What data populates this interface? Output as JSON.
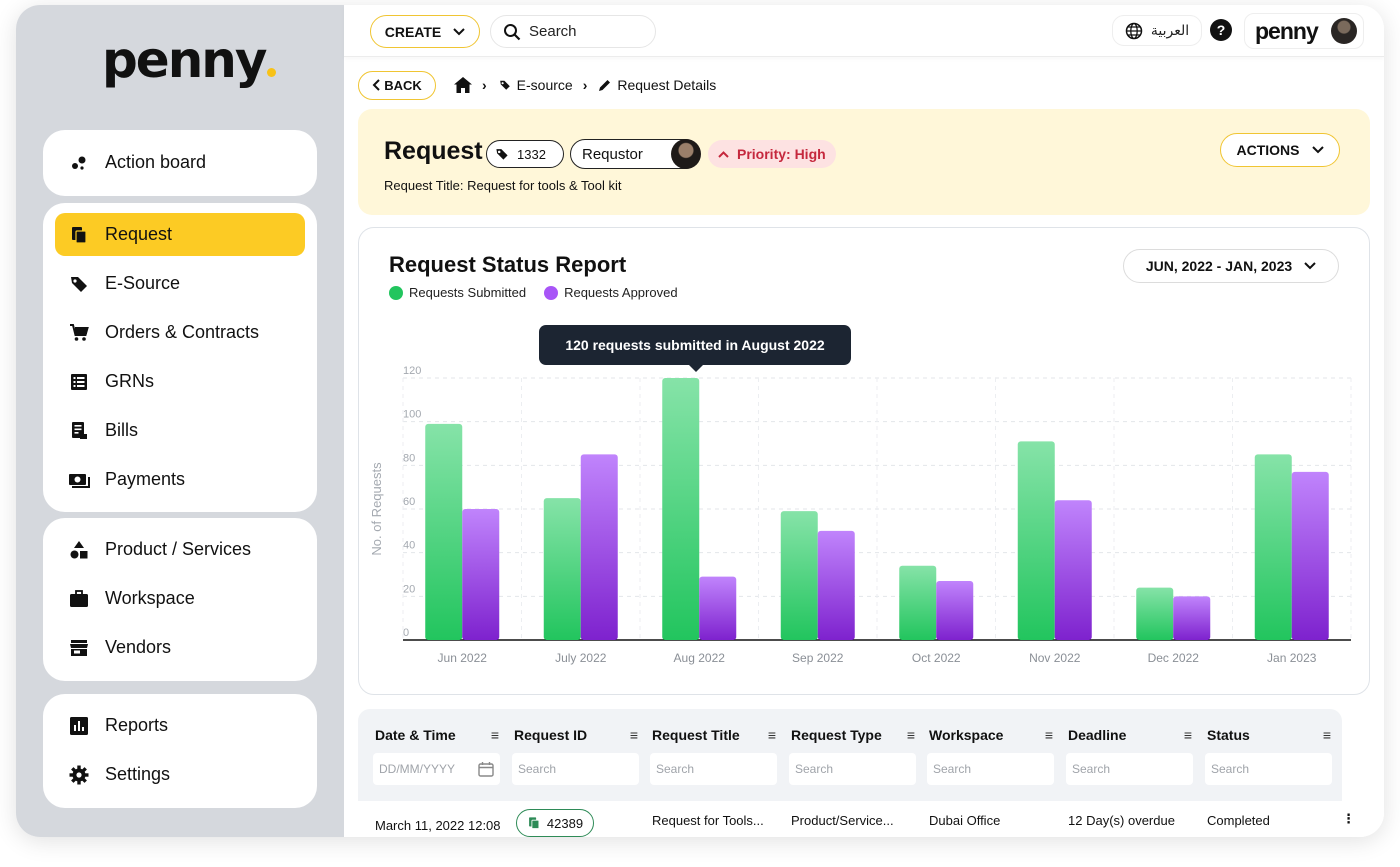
{
  "brand": {
    "logo_text": "penny"
  },
  "sidebar": {
    "top": [
      {
        "label": "Action board",
        "icon": "action-board-icon"
      }
    ],
    "primary": [
      {
        "label": "Request",
        "icon": "request-icon",
        "active": true
      },
      {
        "label": "E-Source",
        "icon": "tag-icon"
      },
      {
        "label": "Orders & Contracts",
        "icon": "cart-icon"
      },
      {
        "label": "GRNs",
        "icon": "list-icon"
      },
      {
        "label": "Bills",
        "icon": "bill-icon"
      },
      {
        "label": "Payments",
        "icon": "payments-icon"
      }
    ],
    "secondary": [
      {
        "label": "Product / Services",
        "icon": "shapes-icon"
      },
      {
        "label": "Workspace",
        "icon": "briefcase-icon"
      },
      {
        "label": "Vendors",
        "icon": "store-icon"
      }
    ],
    "bottom": [
      {
        "label": "Reports",
        "icon": "reports-icon"
      },
      {
        "label": "Settings",
        "icon": "gear-icon"
      }
    ]
  },
  "topbar": {
    "create_label": "CREATE",
    "search_label": "Search",
    "language_label": "العربية",
    "help_label": "?",
    "profile_logo": "penny"
  },
  "breadcrumb": {
    "back_label": "BACK",
    "items": [
      "E-source",
      "Request Details"
    ]
  },
  "request": {
    "title": "Request",
    "tag_number": "1332",
    "requestor_label": "Requstor",
    "priority_label": "Priority: High",
    "subtitle": "Request Title: Request for tools & Tool kit",
    "actions_label": "ACTIONS"
  },
  "report": {
    "title": "Request Status Report",
    "date_range": "JUN, 2022 - JAN, 2023",
    "tooltip": "120 requests submitted in August 2022"
  },
  "chart_data": {
    "type": "bar",
    "title": "Request Status Report",
    "ylabel": "No. of Requests",
    "xlabel": "",
    "ylim": [
      0,
      120
    ],
    "yticks": [
      0,
      20,
      40,
      60,
      80,
      100,
      120
    ],
    "categories": [
      "Jun 2022",
      "July 2022",
      "Aug 2022",
      "Sep 2022",
      "Oct 2022",
      "Nov 2022",
      "Dec 2022",
      "Jan 2023"
    ],
    "series": [
      {
        "name": "Requests Submitted",
        "color": "#22c55e",
        "values": [
          99,
          65,
          120,
          59,
          34,
          91,
          24,
          85
        ]
      },
      {
        "name": "Requests Approved",
        "color": "#9333ea",
        "values": [
          60,
          85,
          29,
          50,
          27,
          64,
          20,
          77
        ]
      }
    ],
    "legend_position": "top-left",
    "grid": true
  },
  "table": {
    "columns": [
      "Date & Time",
      "Request ID",
      "Request Title",
      "Request Type",
      "Workspace",
      "Deadline",
      "Status"
    ],
    "filters": [
      "DD/MM/YYYY",
      "Search",
      "Search",
      "Search",
      "Search",
      "Search",
      "Search"
    ],
    "rows": [
      [
        "March 11, 2022 12:08",
        "42389",
        "Request for Tools...",
        "Product/Service...",
        "Dubai Office",
        "12 Day(s) overdue",
        "Completed"
      ]
    ]
  }
}
